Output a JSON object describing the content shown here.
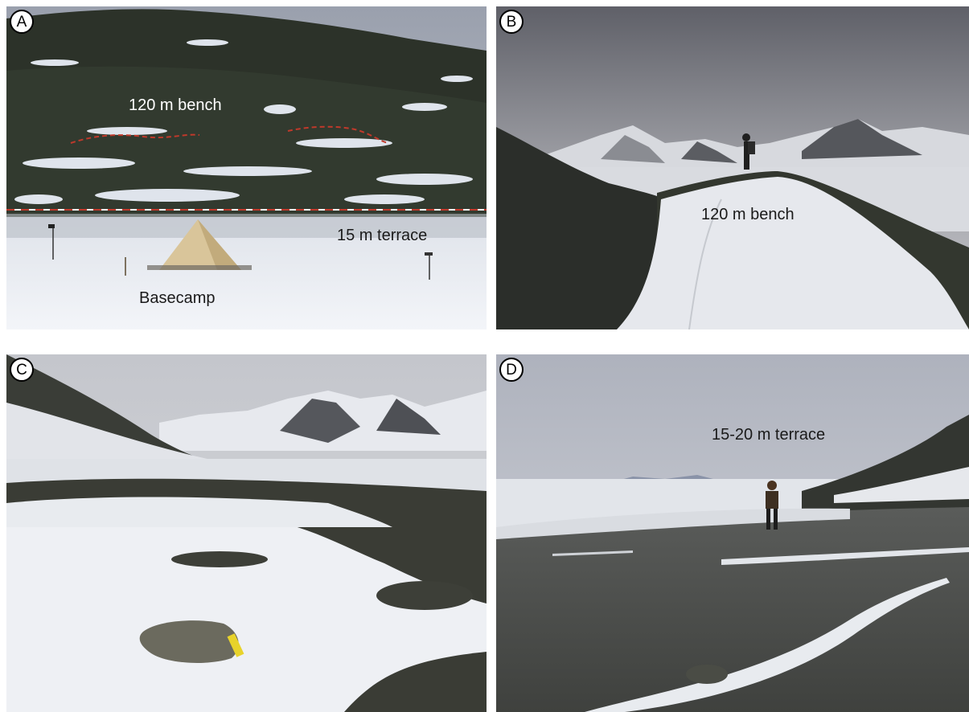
{
  "panels": [
    {
      "id": "A",
      "badge": "A",
      "labels": [
        {
          "text": "120 m bench"
        },
        {
          "text": "15 m terrace"
        },
        {
          "text": "Basecamp"
        }
      ]
    },
    {
      "id": "B",
      "badge": "B",
      "labels": [
        {
          "text": "120 m bench"
        }
      ]
    },
    {
      "id": "C",
      "badge": "C",
      "labels": []
    },
    {
      "id": "D",
      "badge": "D",
      "labels": [
        {
          "text": "15-20 m terrace"
        }
      ]
    }
  ],
  "colors": {
    "sky": "#c9cdd6",
    "snow": "#eef1f6",
    "dark_ground": "#2f332c",
    "tent": "#d9c59a",
    "dashed_line": "#c0392b"
  }
}
